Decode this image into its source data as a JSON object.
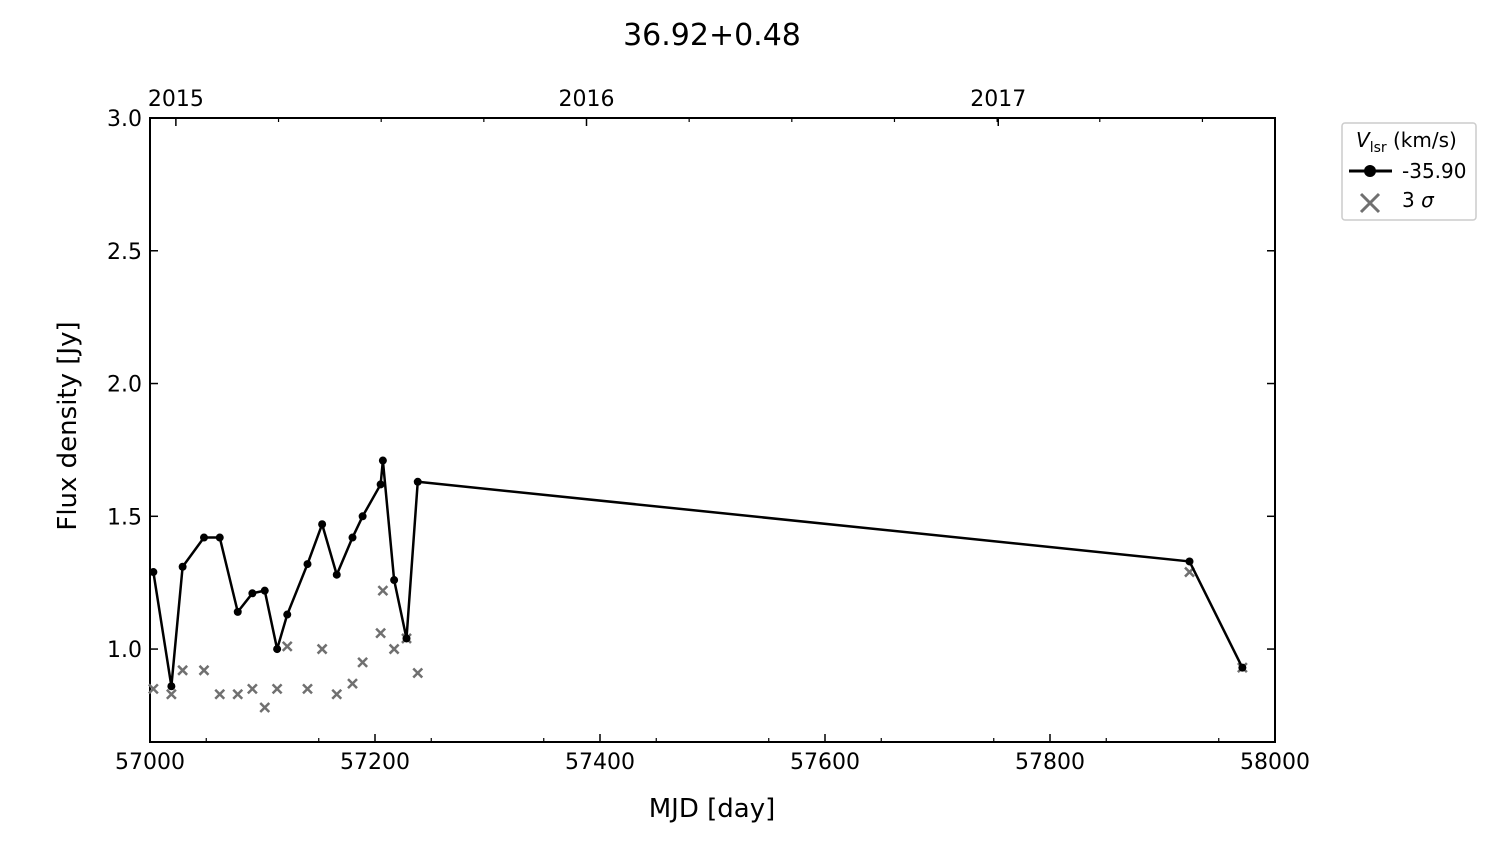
{
  "chart_data": {
    "type": "line",
    "title": "36.92+0.48",
    "xlabel": "MJD [day]",
    "ylabel": "Flux density [Jy]",
    "xlim": [
      57000,
      58000
    ],
    "ylim": [
      0.65,
      3.0
    ],
    "x_ticks": [
      57000,
      57200,
      57400,
      57600,
      57800,
      58000
    ],
    "x_tick_labels": [
      "57000",
      "57200",
      "57400",
      "57600",
      "57800",
      "58000"
    ],
    "y_ticks": [
      1.0,
      1.5,
      2.0,
      2.5,
      3.0
    ],
    "y_tick_labels": [
      "1.0",
      "1.5",
      "2.0",
      "2.5",
      "3.0"
    ],
    "top_axis": {
      "ticks": [
        57023,
        57388,
        57754
      ],
      "labels": [
        "2015",
        "2016",
        "2017"
      ]
    },
    "grid": false,
    "legend": {
      "placement": "outside-top-right",
      "title_main": "V",
      "title_sub": "lsr",
      "title_unit": " (km/s)",
      "sigma_label_prefix": "3 ",
      "sigma_label_symbol": "σ"
    },
    "series": [
      {
        "name": "-35.90",
        "color": "#000000",
        "marker": "circle",
        "x": [
          57003,
          57019,
          57029,
          57048,
          57062,
          57078,
          57091,
          57102,
          57113,
          57122,
          57140,
          57153,
          57166,
          57180,
          57189,
          57205,
          57207,
          57217,
          57228,
          57238,
          57924,
          57971
        ],
        "y": [
          1.29,
          0.86,
          1.31,
          1.42,
          1.42,
          1.14,
          1.21,
          1.22,
          1.0,
          1.13,
          1.32,
          1.47,
          1.28,
          1.42,
          1.5,
          1.62,
          1.71,
          1.26,
          1.04,
          1.63,
          1.33,
          0.93
        ]
      },
      {
        "name": "3 σ",
        "color": "#707070",
        "marker": "x",
        "x": [
          57003,
          57019,
          57029,
          57048,
          57062,
          57078,
          57091,
          57102,
          57113,
          57122,
          57140,
          57153,
          57166,
          57180,
          57189,
          57205,
          57207,
          57217,
          57228,
          57238,
          57924,
          57971
        ],
        "y": [
          0.85,
          0.83,
          0.92,
          0.92,
          0.83,
          0.83,
          0.85,
          0.78,
          0.85,
          1.01,
          0.85,
          1.0,
          0.83,
          0.87,
          0.95,
          1.06,
          1.22,
          1.0,
          1.04,
          0.91,
          1.29,
          0.93
        ]
      }
    ]
  }
}
